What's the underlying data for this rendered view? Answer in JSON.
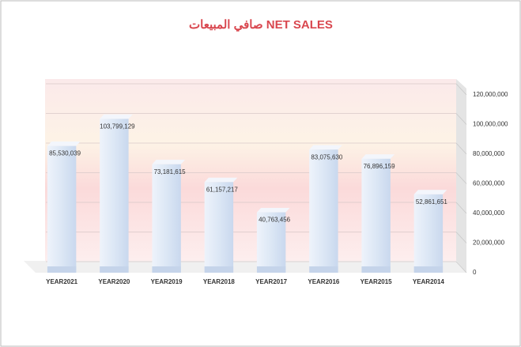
{
  "chart_data": {
    "type": "bar",
    "title": "صافي المبيعات NET SALES",
    "categories": [
      "YEAR2021",
      "YEAR2020",
      "YEAR2019",
      "YEAR2018",
      "YEAR2017",
      "YEAR2016",
      "YEAR2015",
      "YEAR2014"
    ],
    "values": [
      85530039,
      103799129,
      73181615,
      61157217,
      40763456,
      83075630,
      76896159,
      52861651
    ],
    "value_labels": [
      "85,530,039",
      "103,799,129",
      "73,181,615",
      "61,157,217",
      "40,763,456",
      "83,075,630",
      "76,896,159",
      "52,861,651"
    ],
    "color": "#dce7f5",
    "ylim": [
      0,
      120000000
    ],
    "yticks": [
      0,
      {
        "value": 20000000,
        "label": "20,000,000"
      },
      {
        "value": 40000000,
        "label": "40,000,000"
      },
      {
        "value": 60000000,
        "label": "60,000,000"
      },
      {
        "value": 80000000,
        "label": "80,000,000"
      },
      {
        "value": 100000000,
        "label": "100,000,000"
      },
      {
        "value": 120000000,
        "label": "120,000,000"
      }
    ],
    "grid": true
  }
}
